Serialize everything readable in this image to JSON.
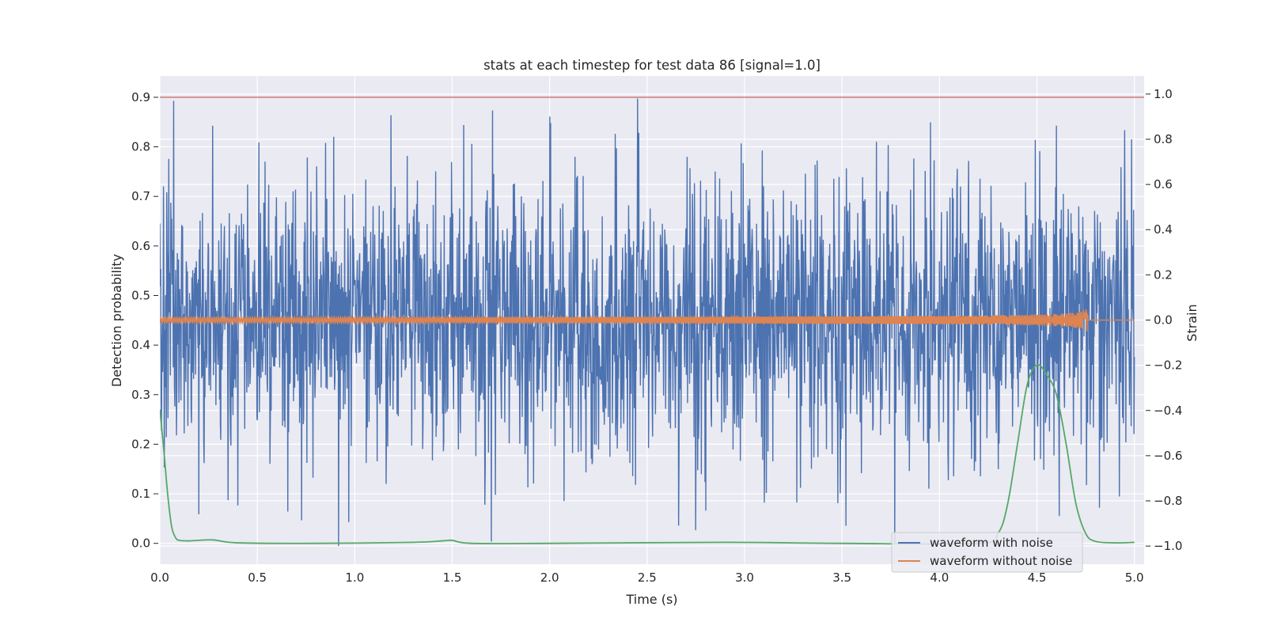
{
  "chart_data": {
    "type": "line",
    "title": "stats at each timestep for test data 86 [signal=1.0]",
    "xlabel": "Time (s)",
    "ylabel_left": "Detection probability",
    "ylabel_right": "Strain",
    "xlim": [
      0.0,
      5.05
    ],
    "ylim_left": [
      -0.042,
      0.943
    ],
    "ylim_right": [
      -1.08,
      1.08
    ],
    "x_ticks": [
      "0.0",
      "0.5",
      "1.0",
      "1.5",
      "2.0",
      "2.5",
      "3.0",
      "3.5",
      "4.0",
      "4.5",
      "5.0"
    ],
    "y_ticks_left": [
      "0.0",
      "0.1",
      "0.2",
      "0.3",
      "0.4",
      "0.5",
      "0.6",
      "0.7",
      "0.8",
      "0.9"
    ],
    "y_ticks_right": [
      "−1.0",
      "−0.8",
      "−0.6",
      "−0.4",
      "−0.2",
      "0.0",
      "0.2",
      "0.4",
      "0.6",
      "0.8",
      "1.0"
    ],
    "grid": true,
    "legend_position": "lower-right",
    "colors": {
      "waveform_with_noise": "#4c72b0",
      "waveform_without_noise": "#dd8452",
      "detection_probability": "#55a868",
      "threshold": "#c44e52",
      "background": "#eaeaf2",
      "grid": "#ffffff"
    },
    "series": [
      {
        "name": "waveform with noise",
        "axis": "right",
        "description_values": {
          "x_range": [
            0.0,
            5.0
          ],
          "amplitude_envelope": [
            -1.0,
            1.0
          ],
          "notable_peaks": [
            [
              0.07,
              0.97
            ],
            [
              0.27,
              0.86
            ],
            [
              1.6,
              0.78
            ],
            [
              2.0,
              0.9
            ],
            [
              2.45,
              0.98
            ],
            [
              4.6,
              0.86
            ],
            [
              4.95,
              0.84
            ]
          ],
          "notable_troughs": [
            [
              0.4,
              -0.82
            ],
            [
              1.7,
              -0.98
            ],
            [
              2.75,
              -0.93
            ],
            [
              3.52,
              -0.91
            ],
            [
              3.77,
              -0.99
            ],
            [
              4.82,
              -0.83
            ]
          ]
        }
      },
      {
        "name": "waveform without noise",
        "axis": "right",
        "description_values": {
          "x_range": [
            0.0,
            5.0
          ],
          "chirp_start_amplitude": 0.012,
          "chirp_peak_time": 4.76,
          "chirp_peak_amplitude": 0.09,
          "after_merger": 0.0
        }
      },
      {
        "axis": "left",
        "x": [
          0.0,
          0.02,
          0.04,
          0.06,
          0.08,
          0.1,
          0.15,
          0.27,
          0.4,
          0.8,
          1.3,
          1.45,
          1.5,
          1.6,
          2.0,
          2.9,
          3.5,
          4.2,
          4.3,
          4.35,
          4.4,
          4.45,
          4.5,
          4.55,
          4.6,
          4.65,
          4.7,
          4.75,
          4.8,
          4.9,
          5.0
        ],
        "values": [
          0.27,
          0.19,
          0.1,
          0.035,
          0.012,
          0.006,
          0.005,
          0.007,
          0.001,
          0.0,
          0.002,
          0.005,
          0.006,
          0.0,
          0.0,
          0.002,
          0.0,
          0.0,
          0.02,
          0.08,
          0.2,
          0.32,
          0.36,
          0.34,
          0.3,
          0.2,
          0.08,
          0.02,
          0.004,
          0.001,
          0.002
        ]
      },
      {
        "axis": "left",
        "type": "hline",
        "values": [
          0.9
        ]
      }
    ],
    "legend": [
      "waveform with noise",
      "waveform without noise"
    ]
  }
}
